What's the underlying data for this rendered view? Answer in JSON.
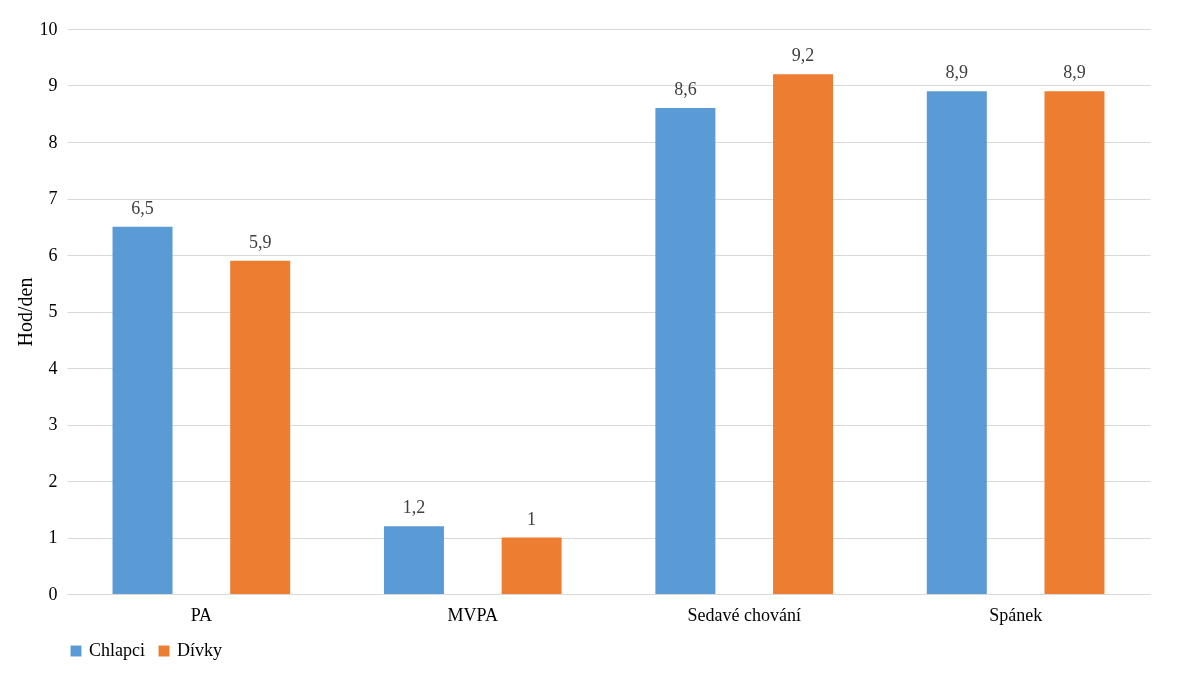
{
  "chart_data": {
    "type": "bar",
    "ylabel": "Hod/den",
    "categories": [
      "PA",
      "MVPA",
      "Sedavé chování",
      "Spánek"
    ],
    "series": [
      {
        "name": "Chlapci",
        "color": "#5b9bd5",
        "values": [
          6.5,
          1.2,
          8.6,
          8.9
        ],
        "value_labels": [
          "6,5",
          "1,2",
          "8,6",
          "8,9"
        ]
      },
      {
        "name": "Dívky",
        "color": "#ed7d31",
        "values": [
          5.9,
          1,
          9.2,
          8.9
        ],
        "value_labels": [
          "5,9",
          "1",
          "9,2",
          "8,9"
        ]
      }
    ],
    "ylim": [
      0,
      10
    ],
    "yticks": [
      0,
      1,
      2,
      3,
      4,
      5,
      6,
      7,
      8,
      9,
      10
    ],
    "grid": "y",
    "legend": "bottom"
  }
}
